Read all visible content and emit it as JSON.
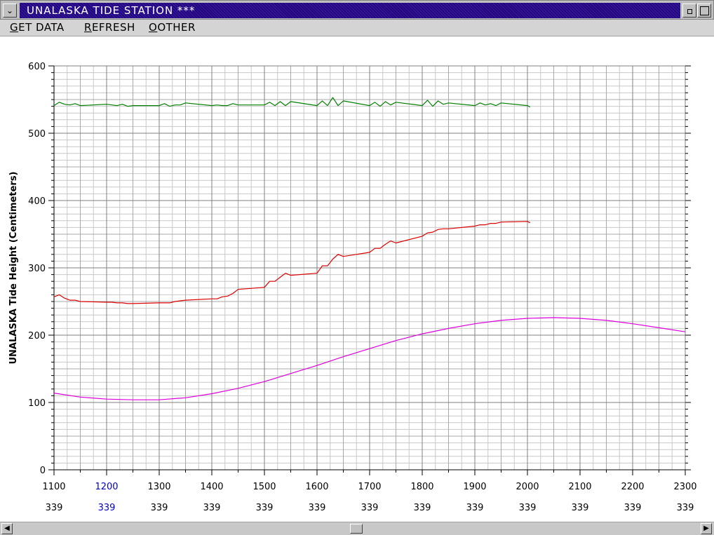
{
  "window": {
    "title": "UNALASKA TIDE STATION ***",
    "sysmenu_icon": "chevron-down-icon"
  },
  "menu": {
    "items": [
      {
        "underline": "G",
        "rest": "ET DATA"
      },
      {
        "underline": "R",
        "rest": "EFRESH"
      },
      {
        "underline": "O",
        "rest": "OTHER"
      }
    ]
  },
  "chart_data": {
    "type": "line",
    "ylabel": "UNALASKA Tide Height (Centimeters)",
    "xlabel": "",
    "xlim": [
      1100,
      2300
    ],
    "ylim": [
      0,
      600
    ],
    "y_ticks": [
      0,
      100,
      200,
      300,
      400,
      500,
      600
    ],
    "x_ticks": [
      1100,
      1200,
      1300,
      1400,
      1500,
      1600,
      1700,
      1800,
      1900,
      2000,
      2100,
      2200,
      2300
    ],
    "x_day_labels": [
      "339",
      "339",
      "339",
      "339",
      "339",
      "339",
      "339",
      "339",
      "339",
      "339",
      "339",
      "339",
      "339"
    ],
    "highlight_tick": 1200,
    "highlight_color": "#0000cc",
    "grid": true,
    "series": [
      {
        "color": "#008000",
        "x": [
          1100,
          1110,
          1120,
          1130,
          1140,
          1150,
          1200,
          1210,
          1220,
          1230,
          1240,
          1250,
          1300,
          1310,
          1320,
          1330,
          1340,
          1350,
          1400,
          1410,
          1420,
          1430,
          1440,
          1450,
          1500,
          1510,
          1520,
          1530,
          1540,
          1550,
          1600,
          1610,
          1620,
          1630,
          1640,
          1650,
          1700,
          1710,
          1720,
          1730,
          1740,
          1750,
          1800,
          1810,
          1820,
          1830,
          1840,
          1850,
          1900,
          1910,
          1920,
          1930,
          1940,
          1950,
          2000,
          2005
        ],
        "y": [
          541,
          546,
          543,
          542,
          544,
          541,
          543,
          542,
          541,
          543,
          540,
          541,
          541,
          544,
          540,
          542,
          542,
          545,
          541,
          542,
          541,
          541,
          544,
          542,
          542,
          546,
          541,
          547,
          541,
          547,
          541,
          548,
          541,
          553,
          541,
          548,
          541,
          546,
          540,
          547,
          542,
          546,
          541,
          549,
          540,
          548,
          543,
          545,
          541,
          545,
          542,
          544,
          541,
          545,
          541,
          539
        ]
      },
      {
        "color": "#dd0000",
        "x": [
          1100,
          1110,
          1120,
          1130,
          1140,
          1150,
          1200,
          1210,
          1220,
          1230,
          1240,
          1250,
          1300,
          1310,
          1320,
          1330,
          1340,
          1350,
          1400,
          1410,
          1420,
          1430,
          1440,
          1450,
          1500,
          1510,
          1520,
          1530,
          1540,
          1550,
          1600,
          1610,
          1620,
          1630,
          1640,
          1650,
          1700,
          1710,
          1720,
          1730,
          1740,
          1750,
          1800,
          1810,
          1820,
          1830,
          1840,
          1850,
          1900,
          1910,
          1920,
          1930,
          1940,
          1950,
          2000,
          2005
        ],
        "y": [
          257,
          260,
          255,
          252,
          252,
          250,
          249,
          249,
          248,
          248,
          247,
          247,
          248,
          248,
          248,
          250,
          251,
          252,
          254,
          254,
          257,
          258,
          262,
          268,
          271,
          280,
          280,
          286,
          292,
          289,
          292,
          303,
          303,
          313,
          320,
          317,
          323,
          329,
          329,
          335,
          340,
          337,
          347,
          352,
          353,
          357,
          358,
          358,
          362,
          364,
          364,
          366,
          366,
          368,
          369,
          367
        ]
      },
      {
        "color": "#dd00dd",
        "x": [
          1100,
          1150,
          1200,
          1250,
          1300,
          1350,
          1400,
          1450,
          1500,
          1550,
          1600,
          1650,
          1700,
          1750,
          1800,
          1850,
          1900,
          1950,
          2000,
          2050,
          2100,
          2150,
          2200,
          2250,
          2300
        ],
        "y": [
          114,
          108,
          105,
          104,
          104,
          107,
          113,
          121,
          131,
          143,
          155,
          168,
          180,
          192,
          202,
          210,
          217,
          222,
          225,
          226,
          225,
          222,
          217,
          211,
          205
        ]
      }
    ]
  }
}
